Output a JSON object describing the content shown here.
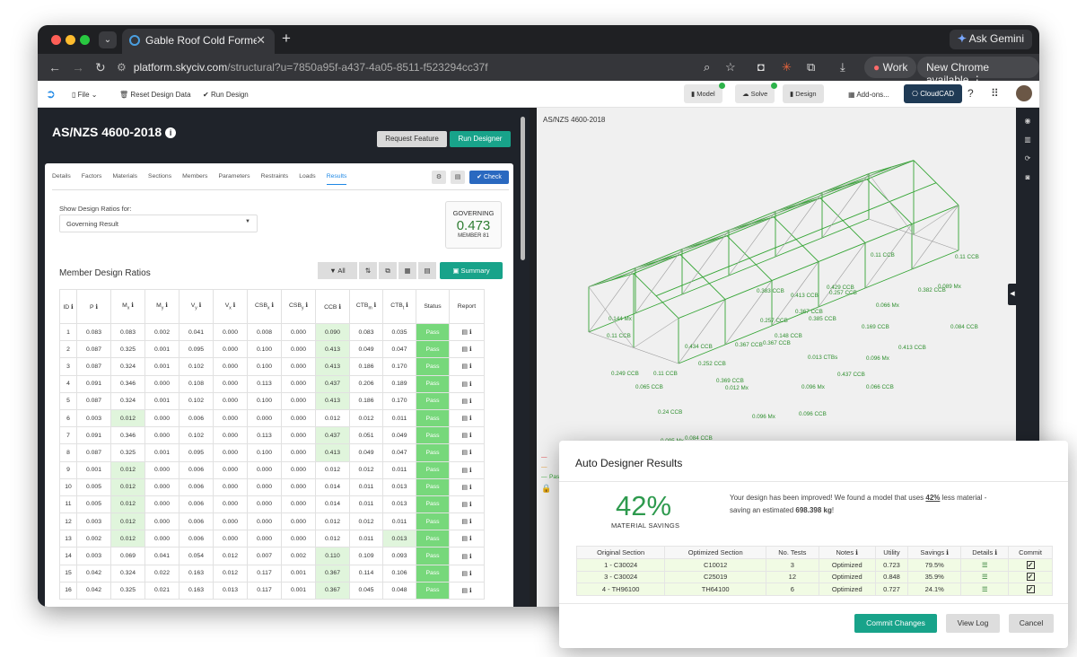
{
  "browser": {
    "tab_title": "Gable Roof Cold Formed 2025",
    "url_host": "platform.skyciv.com",
    "url_path": "/structural?u=7850a95f-a437-4a05-8511-f523294cc37f",
    "ask_gemini": "Ask Gemini",
    "profile": "Work",
    "update": "New Chrome available"
  },
  "appbar": {
    "file": "File",
    "reset": "Reset Design Data",
    "run": "Run Design",
    "model": "Model",
    "solve": "Solve",
    "design": "Design",
    "addons": "Add-ons...",
    "cloudcad": "CloudCAD"
  },
  "panel": {
    "title": "AS/NZS 4600-2018",
    "request_feature": "Request Feature",
    "run_designer": "Run Designer",
    "tabs": [
      "Details",
      "Factors",
      "Materials",
      "Sections",
      "Members",
      "Parameters",
      "Restraints",
      "Loads",
      "Results"
    ],
    "check": "Check",
    "show_label": "Show Design Ratios for:",
    "select_value": "Governing Result",
    "governing_label": "GOVERNING",
    "governing_value": "0.473",
    "governing_member": "MEMBER 81",
    "mdr_title": "Member Design Ratios",
    "filter_all": "All",
    "summary": "Summary"
  },
  "table": {
    "headers": [
      "ID",
      "P",
      "Mx",
      "My",
      "Vy",
      "Vx",
      "CSBx",
      "CSBy",
      "CCB",
      "CTBm",
      "CTBt",
      "Status",
      "Report"
    ],
    "rows": [
      [
        "1",
        "0.083",
        "0.083",
        "0.002",
        "0.041",
        "0.000",
        "0.008",
        "0.000",
        "0.090",
        "0.083",
        "0.035",
        "Pass"
      ],
      [
        "2",
        "0.087",
        "0.325",
        "0.001",
        "0.095",
        "0.000",
        "0.100",
        "0.000",
        "0.413",
        "0.049",
        "0.047",
        "Pass"
      ],
      [
        "3",
        "0.087",
        "0.324",
        "0.001",
        "0.102",
        "0.000",
        "0.100",
        "0.000",
        "0.413",
        "0.186",
        "0.170",
        "Pass"
      ],
      [
        "4",
        "0.091",
        "0.346",
        "0.000",
        "0.108",
        "0.000",
        "0.113",
        "0.000",
        "0.437",
        "0.206",
        "0.189",
        "Pass"
      ],
      [
        "5",
        "0.087",
        "0.324",
        "0.001",
        "0.102",
        "0.000",
        "0.100",
        "0.000",
        "0.413",
        "0.186",
        "0.170",
        "Pass"
      ],
      [
        "6",
        "0.003",
        "0.012",
        "0.000",
        "0.006",
        "0.000",
        "0.000",
        "0.000",
        "0.012",
        "0.012",
        "0.011",
        "Pass"
      ],
      [
        "7",
        "0.091",
        "0.346",
        "0.000",
        "0.102",
        "0.000",
        "0.113",
        "0.000",
        "0.437",
        "0.051",
        "0.049",
        "Pass"
      ],
      [
        "8",
        "0.087",
        "0.325",
        "0.001",
        "0.095",
        "0.000",
        "0.100",
        "0.000",
        "0.413",
        "0.049",
        "0.047",
        "Pass"
      ],
      [
        "9",
        "0.001",
        "0.012",
        "0.000",
        "0.006",
        "0.000",
        "0.000",
        "0.000",
        "0.012",
        "0.012",
        "0.011",
        "Pass"
      ],
      [
        "10",
        "0.005",
        "0.012",
        "0.000",
        "0.006",
        "0.000",
        "0.000",
        "0.000",
        "0.014",
        "0.011",
        "0.013",
        "Pass"
      ],
      [
        "11",
        "0.005",
        "0.012",
        "0.000",
        "0.006",
        "0.000",
        "0.000",
        "0.000",
        "0.014",
        "0.011",
        "0.013",
        "Pass"
      ],
      [
        "12",
        "0.003",
        "0.012",
        "0.000",
        "0.006",
        "0.000",
        "0.000",
        "0.000",
        "0.012",
        "0.012",
        "0.011",
        "Pass"
      ],
      [
        "13",
        "0.002",
        "0.012",
        "0.000",
        "0.006",
        "0.000",
        "0.000",
        "0.000",
        "0.012",
        "0.011",
        "0.013",
        "Pass"
      ],
      [
        "14",
        "0.003",
        "0.069",
        "0.041",
        "0.054",
        "0.012",
        "0.007",
        "0.002",
        "0.110",
        "0.109",
        "0.093",
        "Pass"
      ],
      [
        "15",
        "0.042",
        "0.324",
        "0.022",
        "0.163",
        "0.012",
        "0.117",
        "0.001",
        "0.367",
        "0.114",
        "0.106",
        "Pass"
      ],
      [
        "16",
        "0.042",
        "0.325",
        "0.021",
        "0.163",
        "0.013",
        "0.117",
        "0.001",
        "0.367",
        "0.045",
        "0.048",
        "Pass"
      ]
    ]
  },
  "viewer": {
    "label": "AS/NZS 4600-2018",
    "annotations": [
      "0.11 CCB",
      "0.367 CCB",
      "0.383 CCB",
      "0.413 CCB",
      "0.11 CCB",
      "0.429 CCB",
      "0.382 CCB",
      "0.089 Mx",
      "0.257 CCB",
      "0.144 Mx",
      "0.367 CCB",
      "0.257 CCB",
      "0.385 CCB",
      "0.066 Mx",
      "0.084 CCB",
      "0.11 CCB",
      "0.434 CCB",
      "0.367 CCB",
      "0.148 CCB",
      "0.169 CCB",
      "0.413 CCB",
      "0.096 Mx",
      "0.249 CCB",
      "0.11 CCB",
      "0.252 CCB",
      "0.369 CCB",
      "0.437 CCB",
      "0.066 CCB",
      "0.065 CCB",
      "0.096 Mx",
      "0.24 CCB",
      "0.096 Mx",
      "0.096 CCB",
      "0.084 CCB",
      "0.096 CCB",
      "0.095 Mx",
      "0.013 CTBs",
      "0.012 Mx"
    ],
    "legend_pass": "Pass"
  },
  "dialog": {
    "title": "Auto Designer Results",
    "savings_pct": "42%",
    "savings_label": "MATERIAL SAVINGS",
    "msg_a": "Your design has been improved! We found a model that uses ",
    "msg_pct": "42%",
    "msg_b": " less material - saving an estimated ",
    "msg_kg": "698.398 kg",
    "msg_c": "!",
    "headers": [
      "Original Section",
      "Optimized Section",
      "No. Tests",
      "Notes",
      "Utility",
      "Savings",
      "Details",
      "Commit"
    ],
    "rows": [
      [
        "1 - C30024",
        "C10012",
        "3",
        "Optimized",
        "0.723",
        "79.5%"
      ],
      [
        "3 - C30024",
        "C25019",
        "12",
        "Optimized",
        "0.848",
        "35.9%"
      ],
      [
        "4 - TH96100",
        "TH64100",
        "6",
        "Optimized",
        "0.727",
        "24.1%"
      ]
    ],
    "commit": "Commit Changes",
    "view_log": "View Log",
    "cancel": "Cancel"
  }
}
